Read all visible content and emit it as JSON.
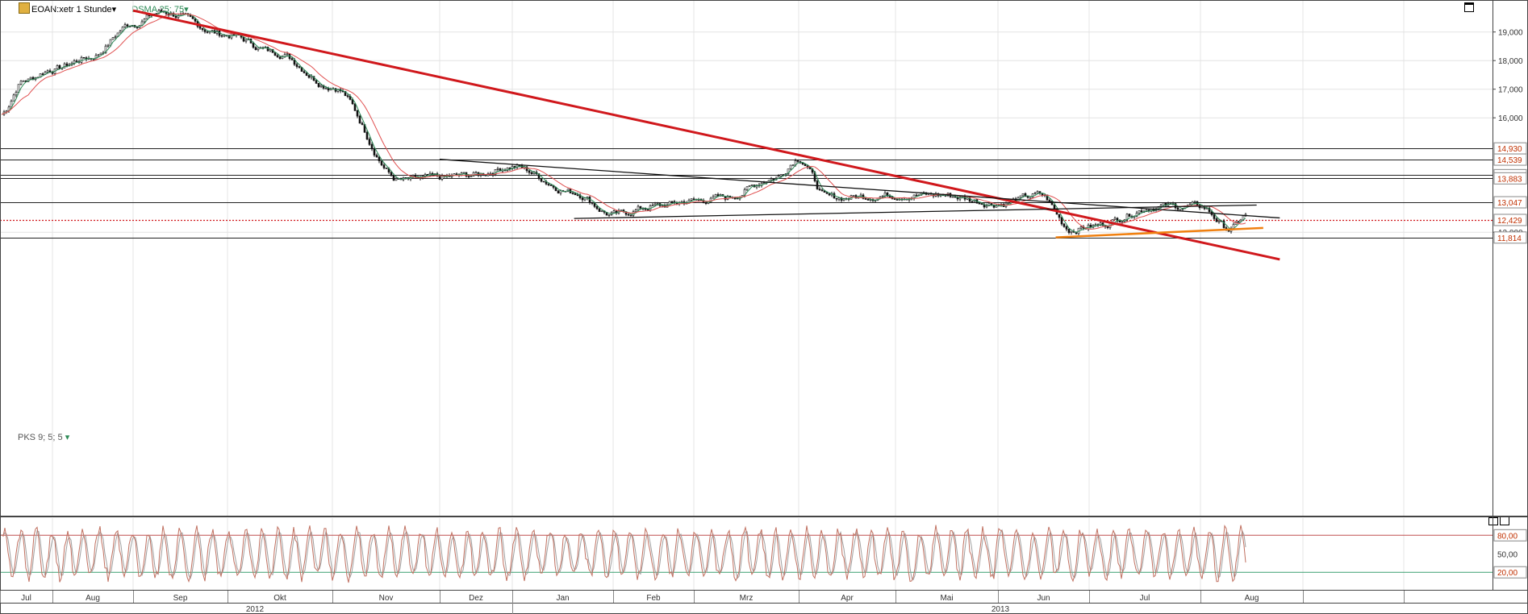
{
  "header": {
    "symbol": "EOAN:xetr 1 Stunde",
    "symbol_dropdown": "▾",
    "indicator": "DSMA 25; 75",
    "indicator_dropdown": "▾"
  },
  "oscillator_header": {
    "label": "PKS 9; 5; 5",
    "dropdown": "▾"
  },
  "colors": {
    "red_trendline": "#d0181c",
    "orange_trendline": "#f08010",
    "sma_fast": "#2e8b57",
    "sma_slow": "#e05050",
    "level_label_red": "#c03000",
    "axis_label": "#333333",
    "stoch_line": "#c07060",
    "stoch_level_80": "#c05050",
    "stoch_level_20": "#3aa070"
  },
  "chart_data": [
    {
      "type": "line",
      "title": "",
      "y_axis": {
        "ticks": [
          "19,000",
          "18,000",
          "17,000",
          "16,000",
          "12,000"
        ],
        "range": [
          11.05,
          19.65
        ]
      },
      "x_axis": {
        "months": [
          "Jul",
          "Aug",
          "Sep",
          "Okt",
          "Nov",
          "Dez",
          "Jan",
          "Feb",
          "Mrz",
          "Apr",
          "Mai",
          "Jun",
          "Jul",
          "Aug"
        ],
        "years": [
          "2012",
          "2013"
        ]
      },
      "series": [
        {
          "x": [
            "2012-07",
            "2012-07-15",
            "2012-08",
            "2012-08-15",
            "2012-09",
            "2012-09-10",
            "2012-10",
            "2012-10-15",
            "2012-11",
            "2012-11-20",
            "2012-12",
            "2012-12-15",
            "2013-01",
            "2013-01-20",
            "2013-02",
            "2013-02-15",
            "2013-03",
            "2013-03-10",
            "2013-03-25",
            "2013-04",
            "2013-04-10",
            "2013-05",
            "2013-05-15",
            "2013-06",
            "2013-06-15",
            "2013-06-25",
            "2013-07",
            "2013-07-20",
            "2013-08",
            "2013-08-10",
            "2013-08-15"
          ],
          "values": [
            16.1,
            17.3,
            17.7,
            18.1,
            19.3,
            19.7,
            18.9,
            18.3,
            17.1,
            13.8,
            13.9,
            14.0,
            14.3,
            13.4,
            12.6,
            12.9,
            13.1,
            13.2,
            13.9,
            14.6,
            13.2,
            13.3,
            13.3,
            13.0,
            13.3,
            12.1,
            12.2,
            12.9,
            12.9,
            12.1,
            12.6
          ]
        }
      ],
      "horizontal_levels": [
        "14,930",
        "14,539",
        "13,996",
        "13,883",
        "13,047",
        "12,429",
        "11,814"
      ],
      "dotted_level": "12,429",
      "trendlines": [
        {
          "name": "red-downtrend",
          "from": [
            "2012-09",
            19.75
          ],
          "to": [
            "2013-08-25",
            11.05
          ]
        },
        {
          "name": "upper-black",
          "from": [
            "2012-12-01",
            14.55
          ],
          "to": [
            "2013-08-25",
            12.5
          ]
        },
        {
          "name": "lower-black",
          "from": [
            "2013-01-20",
            12.48
          ],
          "to": [
            "2013-08-18",
            12.95
          ]
        },
        {
          "name": "orange-support",
          "from": [
            "2013-06-20",
            11.82
          ],
          "to": [
            "2013-08-20",
            12.15
          ]
        }
      ]
    },
    {
      "type": "line",
      "title": "",
      "y_axis": {
        "ticks": [
          "80,00",
          "50,00",
          "20,00"
        ],
        "range": [
          0,
          100
        ]
      },
      "levels": [
        "80,00",
        "20,00"
      ]
    }
  ]
}
